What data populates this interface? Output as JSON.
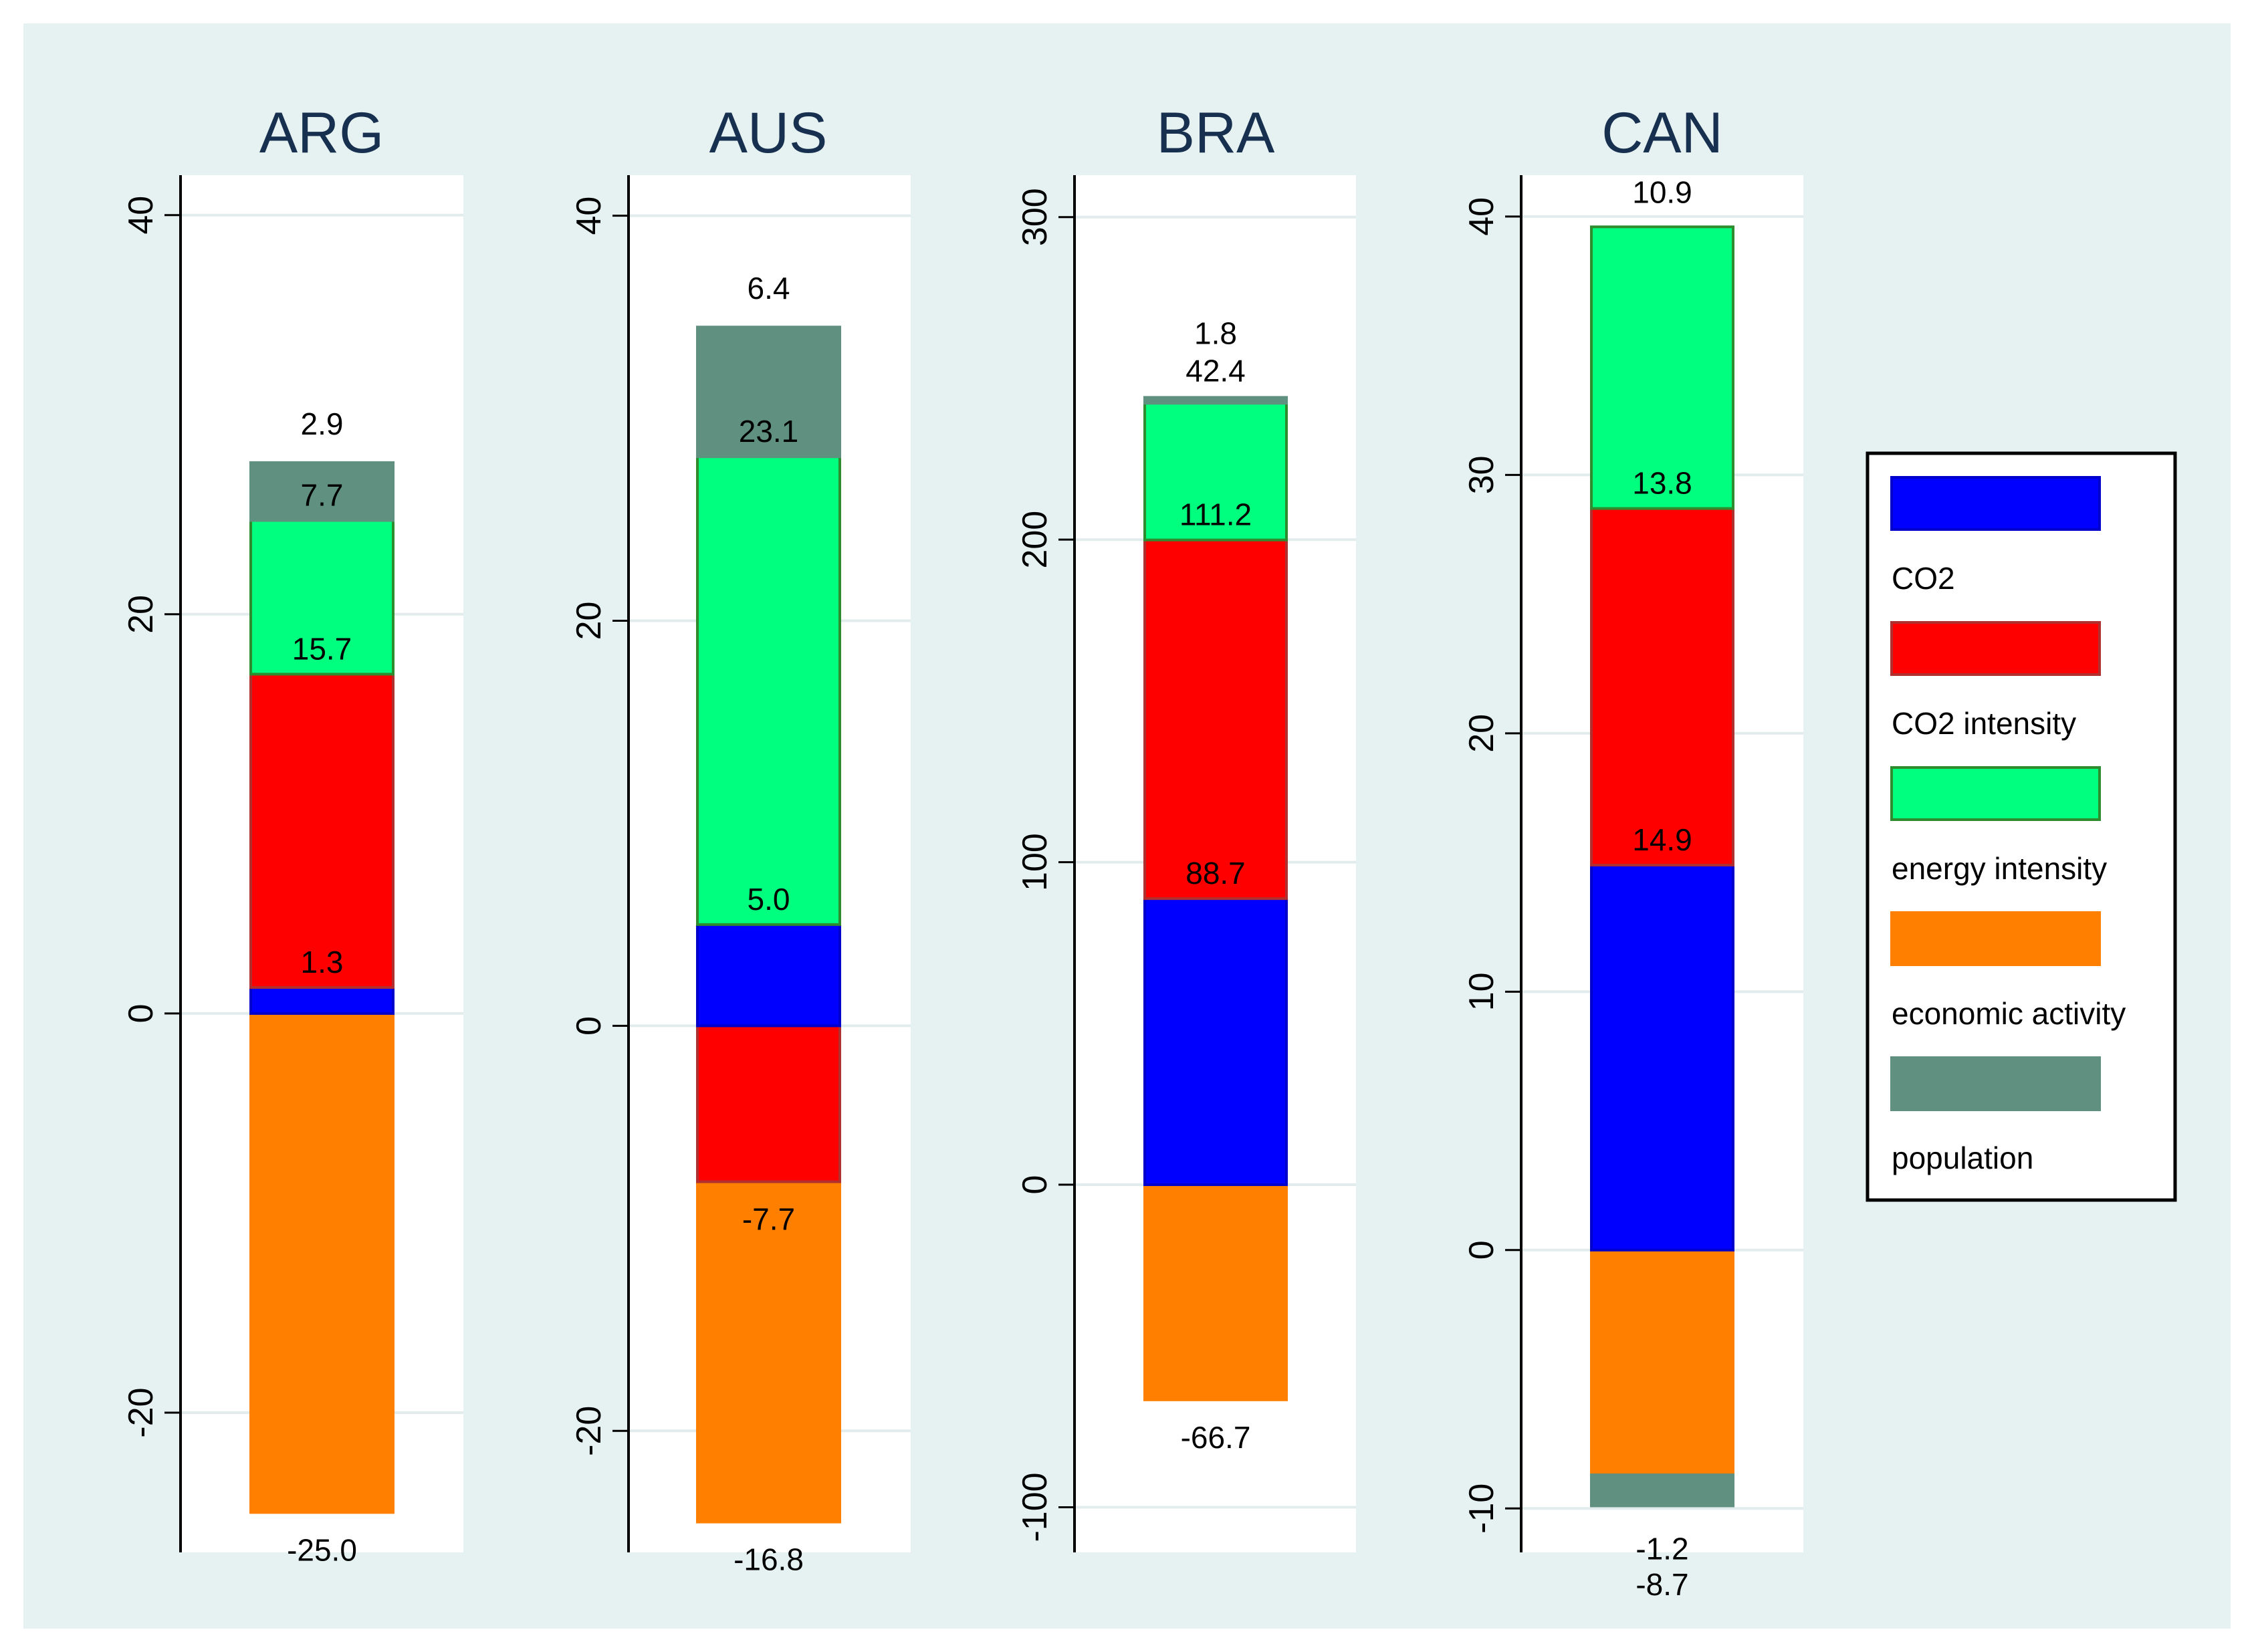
{
  "colors": {
    "frame": "#e6f1f1",
    "plot": "#ffffff",
    "grid": "#e2ecec",
    "axis": "#000000",
    "title": "#17304f",
    "text": "#000000",
    "series": {
      "blue": "#0000ff",
      "red": "#ff0000",
      "green": "#00ff7f",
      "orange": "#ff8000",
      "teal": "#5f9080"
    },
    "edges": {
      "blue": "#0000cc",
      "red": "#b03030",
      "green": "#2e8b2e",
      "orange": "#ff8000",
      "teal": "#5f9080"
    }
  },
  "legend": {
    "entries": [
      {
        "key": "blue",
        "label": ""
      },
      {
        "key": "red",
        "label": "CO2"
      },
      {
        "key": "green",
        "label": "CO2 intensity"
      },
      {
        "key": "orange",
        "label": "energy intensity"
      },
      {
        "key": "teal",
        "label": "economic activity"
      }
    ],
    "last_label": "population",
    "placement": "right"
  },
  "chart_data": [
    {
      "type": "bar",
      "title": "ARG",
      "ylim": [
        -27,
        42
      ],
      "yticks": [
        -20,
        0,
        20,
        40
      ],
      "segments": [
        {
          "key": "orange",
          "from": 0,
          "to": -25.0
        },
        {
          "key": "blue",
          "from": 0,
          "to": 1.3
        },
        {
          "key": "red",
          "from": 1.3,
          "to": 17.0
        },
        {
          "key": "green",
          "from": 17.0,
          "to": 24.7
        },
        {
          "key": "teal",
          "from": 24.7,
          "to": 27.6
        }
      ],
      "labels": [
        {
          "text": "1.3",
          "y": 1.3
        },
        {
          "text": "15.7",
          "y": 17.0
        },
        {
          "text": "7.7",
          "y": 24.7
        },
        {
          "text": "2.9",
          "y": 27.6
        },
        {
          "text": "-25.0",
          "y": -25.0
        }
      ]
    },
    {
      "type": "bar",
      "title": "AUS",
      "ylim": [
        -26,
        42
      ],
      "yticks": [
        -20,
        0,
        20,
        40
      ],
      "segments": [
        {
          "key": "orange",
          "from": -7.7,
          "to": -24.5
        },
        {
          "key": "red",
          "from": 0,
          "to": -7.7
        },
        {
          "key": "blue",
          "from": 0,
          "to": 5.0
        },
        {
          "key": "green",
          "from": 5.0,
          "to": 28.1
        },
        {
          "key": "teal",
          "from": 28.1,
          "to": 34.5
        }
      ],
      "labels": [
        {
          "text": "5.0",
          "y": 5.0
        },
        {
          "text": "-7.7",
          "y": -7.7
        },
        {
          "text": "23.1",
          "y": 28.1
        },
        {
          "text": "6.4",
          "y": 34.5
        },
        {
          "text": "-16.8",
          "y": -24.5
        }
      ]
    },
    {
      "type": "bar",
      "title": "BRA",
      "ylim": [
        -114,
        313
      ],
      "yticks": [
        -100,
        0,
        100,
        200,
        300
      ],
      "segments": [
        {
          "key": "orange",
          "from": 0,
          "to": -66.7
        },
        {
          "key": "blue",
          "from": 0,
          "to": 88.7
        },
        {
          "key": "red",
          "from": 88.7,
          "to": 199.9
        },
        {
          "key": "green",
          "from": 199.9,
          "to": 242.3
        },
        {
          "key": "teal",
          "from": 242.3,
          "to": 244.1
        }
      ],
      "labels": [
        {
          "text": "88.7",
          "y": 88.7
        },
        {
          "text": "111.2",
          "y": 199.9
        },
        {
          "text": "42.4",
          "y": 242.3
        },
        {
          "text": "1.8",
          "y": 244.1
        },
        {
          "text": "-66.7",
          "y": -66.7
        }
      ]
    },
    {
      "type": "bar",
      "title": "CAN",
      "ylim": [
        -11.7,
        41.6
      ],
      "yticks": [
        -10,
        0,
        10,
        20,
        30,
        40
      ],
      "segments": [
        {
          "key": "orange",
          "from": 0,
          "to": -8.7
        },
        {
          "key": "teal",
          "from": -8.7,
          "to": -9.9
        },
        {
          "key": "blue",
          "from": 0,
          "to": 14.9
        },
        {
          "key": "red",
          "from": 14.9,
          "to": 28.7
        },
        {
          "key": "green",
          "from": 28.7,
          "to": 39.6
        }
      ],
      "labels": [
        {
          "text": "14.9",
          "y": 14.9
        },
        {
          "text": "13.8",
          "y": 28.7
        },
        {
          "text": "10.9",
          "y": 39.6
        },
        {
          "text": "-8.7",
          "y": -8.7
        },
        {
          "text": "-1.2",
          "y": -9.9
        }
      ]
    }
  ]
}
